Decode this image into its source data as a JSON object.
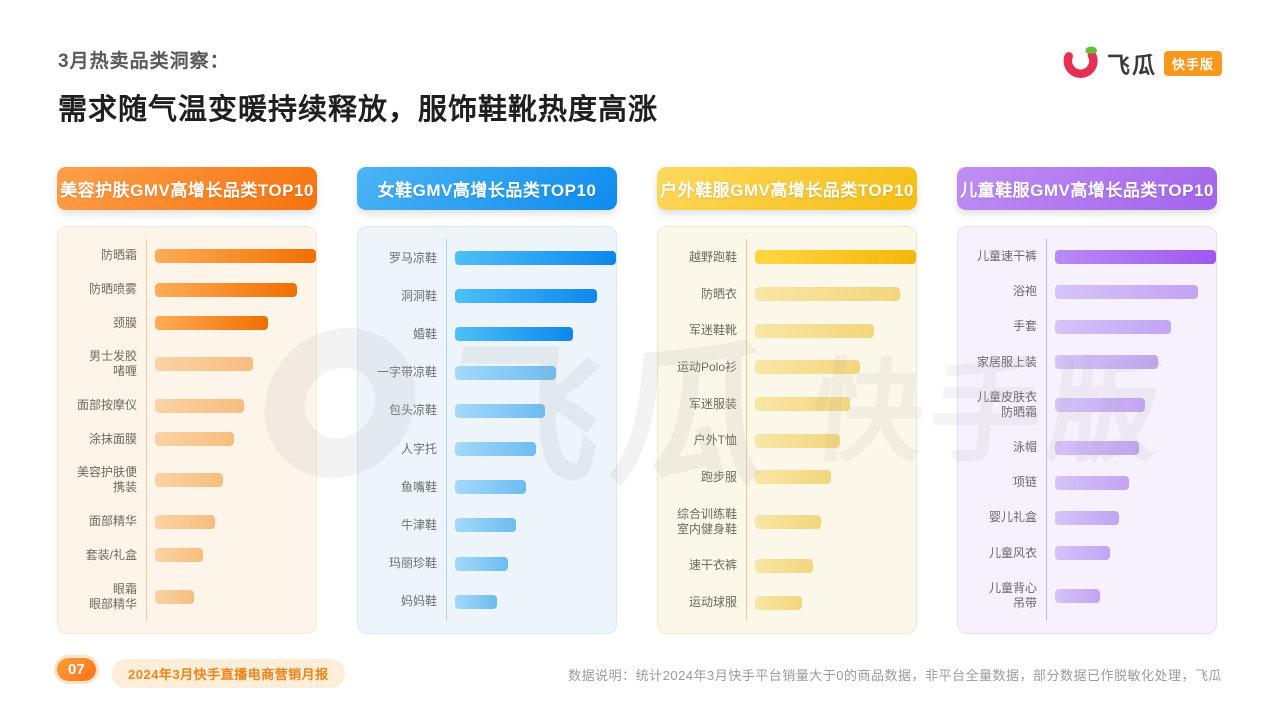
{
  "page": {
    "kicker": "3月热卖品类洞察：",
    "title": "需求随气温变暖持续释放，服饰鞋靴热度高涨"
  },
  "logo": {
    "brand": "飞瓜",
    "badge": "快手版"
  },
  "watermark": {
    "brand": "飞瓜",
    "badge": "快手版"
  },
  "footer": {
    "page_number": "07",
    "report_name": "2024年3月快手直播电商营销月报",
    "note": "数据说明：统计2024年3月快手平台销量大于0的商品数据，非平台全量数据，部分数据已作脱敏化处理，飞瓜"
  },
  "chart_data": [
    {
      "type": "bar",
      "orientation": "horizontal",
      "title": "美容护肤GMV高增长品类TOP10",
      "categories": [
        "防晒霜",
        "防晒喷雾",
        "颈膜",
        "男士发胶\n啫喱",
        "面部按摩仪",
        "涂抹面膜",
        "美容护肤便\n携装",
        "面部精华",
        "套装/礼盒",
        "眼霜\n眼部精华"
      ],
      "values": [
        100,
        88,
        70,
        61,
        55,
        49,
        42,
        37,
        30,
        24
      ],
      "values_note": "estimated relative bar lengths in % of longest bar; no numeric labels shown",
      "xlim": [
        0,
        100
      ],
      "highlight_count": 3,
      "colors": {
        "header_from": "#ffa04a",
        "header_to": "#f6720d",
        "bar_strong_from": "#ffad58",
        "bar_strong_to": "#f06f00",
        "bar_light_from": "#fbd3a4",
        "bar_light_to": "#f7bd7e",
        "card_bg": "#fdf5ea",
        "card_border": "#f6e8d2",
        "divider": "#f2cfa4",
        "label": "#70695f"
      }
    },
    {
      "type": "bar",
      "orientation": "horizontal",
      "title": "女鞋GMV高增长品类TOP10",
      "categories": [
        "罗马凉鞋",
        "洞洞鞋",
        "婚鞋",
        "一字带凉鞋",
        "包头凉鞋",
        "人字托",
        "鱼嘴鞋",
        "牛津鞋",
        "玛丽珍鞋",
        "妈妈鞋"
      ],
      "values": [
        100,
        88,
        73,
        63,
        56,
        50,
        44,
        38,
        33,
        26
      ],
      "values_note": "estimated relative bar lengths in % of longest bar; no numeric labels shown",
      "xlim": [
        0,
        100
      ],
      "highlight_count": 3,
      "colors": {
        "header_from": "#4cb5f5",
        "header_to": "#0d8bee",
        "bar_strong_from": "#4dc0f7",
        "bar_strong_to": "#0d87ee",
        "bar_light_from": "#a4d9f9",
        "bar_light_to": "#6cbcf2",
        "card_bg": "#edf5fb",
        "card_border": "#d9eaf6",
        "divider": "#a9d4f0",
        "label": "#6a6f73"
      }
    },
    {
      "type": "bar",
      "orientation": "horizontal",
      "title": "户外鞋服GMV高增长品类TOP10",
      "categories": [
        "越野跑鞋",
        "防晒衣",
        "军迷鞋靴",
        "运动Polo衫",
        "军迷服装",
        "户外T恤",
        "跑步服",
        "综合训练鞋\n室内健身鞋",
        "速干衣裤",
        "运动球服"
      ],
      "values": [
        100,
        90,
        74,
        65,
        59,
        53,
        47,
        41,
        36,
        29
      ],
      "values_note": "estimated relative bar lengths in % of longest bar; no numeric labels shown",
      "xlim": [
        0,
        100
      ],
      "highlight_count": 1,
      "colors": {
        "header_from": "#ffd95e",
        "header_to": "#f5bd13",
        "bar_strong_from": "#ffd643",
        "bar_strong_to": "#f3b70a",
        "bar_light_from": "#f9e6a6",
        "bar_light_to": "#f3d67c",
        "card_bg": "#fcf8e9",
        "card_border": "#f2e8c6",
        "divider": "#eed27f",
        "label": "#6f6a5c"
      }
    },
    {
      "type": "bar",
      "orientation": "horizontal",
      "title": "儿童鞋服GMV高增长品类TOP10",
      "categories": [
        "儿童速干裤",
        "浴袍",
        "手套",
        "家居服上装",
        "儿童皮肤衣\n防晒霜",
        "泳帽",
        "项链",
        "婴儿礼盒",
        "儿童风衣",
        "儿童背心\n吊带"
      ],
      "values": [
        100,
        89,
        72,
        64,
        56,
        52,
        46,
        40,
        34,
        28
      ],
      "values_note": "estimated relative bar lengths in % of longest bar; no numeric labels shown",
      "xlim": [
        0,
        100
      ],
      "highlight_count": 1,
      "colors": {
        "header_from": "#c18ff4",
        "header_to": "#a263ec",
        "bar_strong_from": "#b98af5",
        "bar_strong_to": "#9c59ef",
        "bar_light_from": "#d6c3f8",
        "bar_light_to": "#c2a4f4",
        "card_bg": "#f6f1fd",
        "card_border": "#e7dcf7",
        "divider": "#cdb2f1",
        "label": "#6b6771"
      }
    }
  ]
}
